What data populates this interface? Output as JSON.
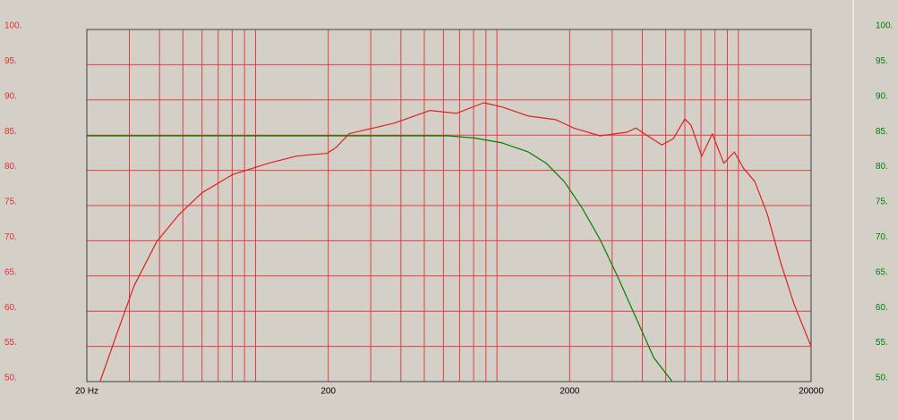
{
  "chart_data": {
    "type": "line",
    "xscale": "log",
    "xlim": [
      20,
      20000
    ],
    "xticks": [
      {
        "value": 20,
        "label": "20 Hz"
      },
      200,
      2000,
      20000
    ],
    "x_minor_ticks": [
      30,
      40,
      50,
      60,
      70,
      80,
      90,
      100,
      300,
      400,
      500,
      600,
      700,
      800,
      900,
      1000,
      3000,
      4000,
      5000,
      6000,
      7000,
      8000,
      9000,
      10000
    ],
    "ylim": [
      50,
      100
    ],
    "yticks": [
      {
        "value": 50,
        "label": "50."
      },
      {
        "value": 55,
        "label": "55."
      },
      {
        "value": 60,
        "label": "60."
      },
      {
        "value": 65,
        "label": "65."
      },
      {
        "value": 70,
        "label": "70."
      },
      {
        "value": 75,
        "label": "75."
      },
      {
        "value": 80,
        "label": "80."
      },
      {
        "value": 85,
        "label": "85."
      },
      {
        "value": 90,
        "label": "90."
      },
      {
        "value": 95,
        "label": "95."
      },
      {
        "value": 100,
        "label": "100."
      }
    ],
    "y2lim": [
      50,
      100
    ],
    "y2ticks": [
      {
        "value": 50,
        "label": "50."
      },
      {
        "value": 55,
        "label": "55."
      },
      {
        "value": 60,
        "label": "60."
      },
      {
        "value": 65,
        "label": "65."
      },
      {
        "value": 70,
        "label": "70."
      },
      {
        "value": 75,
        "label": "75."
      },
      {
        "value": 80,
        "label": "80."
      },
      {
        "value": 85,
        "label": "85."
      },
      {
        "value": 90,
        "label": "90."
      },
      {
        "value": 95,
        "label": "95."
      },
      {
        "value": 100,
        "label": "100."
      }
    ],
    "y_label_color": "#e03030",
    "y2_label_color": "#008000",
    "grid": true,
    "grid_color": "#e04040",
    "series": [
      {
        "color": "#e02020",
        "x": [
          22.7,
          26.5,
          31.4,
          39,
          48.1,
          59.9,
          80.4,
          113,
          147,
          166,
          197,
          215,
          244,
          289,
          375,
          528,
          679,
          882,
          1050,
          1350,
          1750,
          2080,
          2670,
          3450,
          3760,
          4080,
          4820,
          5380,
          6000,
          6370,
          7050,
          7800,
          8700,
          9620,
          10500,
          11700,
          13200,
          15000,
          17000,
          20000
        ],
        "values": [
          50,
          56.6,
          63.6,
          69.9,
          73.7,
          76.8,
          79.4,
          81,
          82,
          82.2,
          82.4,
          83.2,
          85.2,
          85.8,
          86.7,
          88.5,
          88.1,
          89.6,
          89,
          87.7,
          87.2,
          86,
          84.9,
          85.4,
          86,
          85.2,
          83.6,
          84.5,
          87.3,
          86.4,
          82,
          85.2,
          81,
          82.6,
          80.3,
          78.4,
          73.7,
          66.8,
          61,
          55
        ]
      },
      {
        "color": "#008000",
        "axis": "y2",
        "x": [
          20,
          100,
          300,
          486,
          627,
          804,
          1050,
          1350,
          1600,
          1900,
          2250,
          2670,
          3170,
          3760,
          4460,
          5320
        ],
        "values": [
          84.9,
          84.9,
          84.9,
          84.9,
          84.9,
          84.6,
          83.9,
          82.6,
          81,
          78.4,
          74.7,
          70.2,
          64.8,
          59.1,
          53.4,
          50
        ]
      }
    ]
  }
}
